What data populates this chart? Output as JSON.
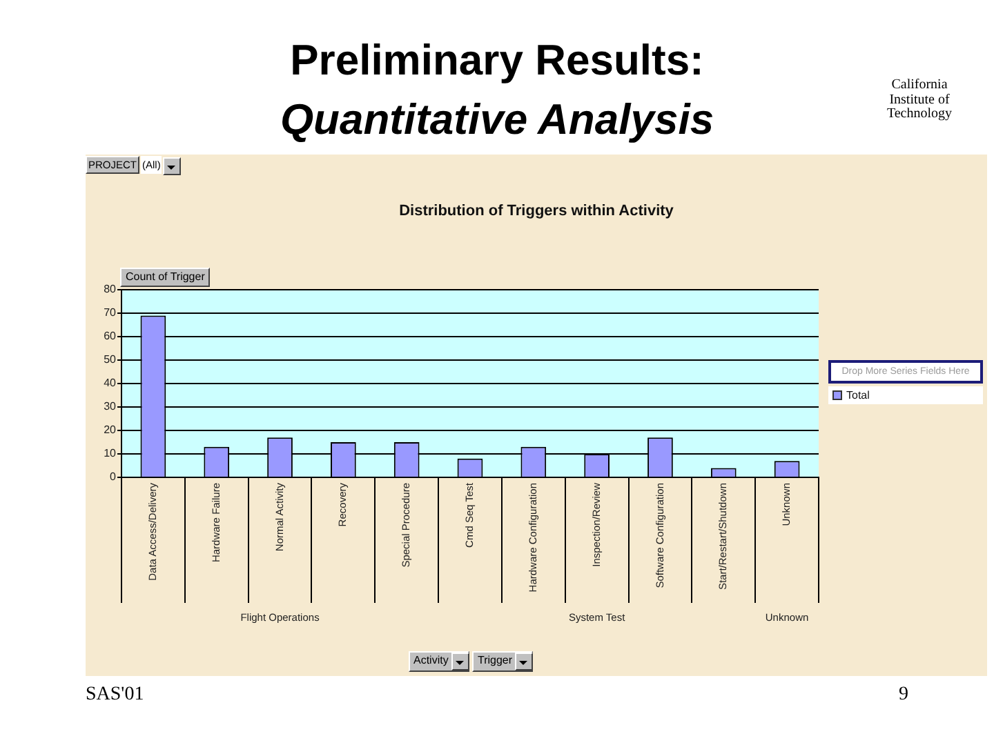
{
  "chart_data": {
    "type": "bar",
    "title": "Preliminary Results:\nQuantitative Analysis",
    "subtitle": "Distribution of Triggers within Activity",
    "ylabel": "Count of Trigger",
    "categories": [
      "Data Access/Delivery",
      "Hardware Failure",
      "Normal Activity",
      "Recovery",
      "Special Procedure",
      "Cmd Seq Test",
      "Hardware Configuration",
      "Inspection/Review",
      "Software Configuration",
      "Start/Restart/Shutdown",
      "Unknown"
    ],
    "series": [
      {
        "name": "Total",
        "color": "#9999ff",
        "values": [
          69,
          13,
          17,
          15,
          15,
          8,
          13,
          10,
          17,
          4,
          7
        ]
      }
    ],
    "ylim": [
      0,
      80
    ],
    "yticks": [
      0,
      10,
      20,
      30,
      40,
      50,
      60,
      70,
      80
    ],
    "grid": "y",
    "legend": "right",
    "annotations": [
      "Flight Operations",
      "System Test",
      "Unknown",
      "PROJECT",
      "(All)",
      "Drop More Series Fields Here",
      "Activity",
      "Trigger",
      "California Institute of Technology",
      "SAS'01",
      "9"
    ]
  }
}
